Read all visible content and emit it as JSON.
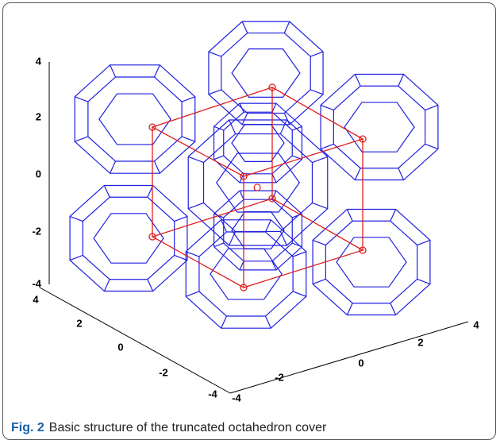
{
  "figure": {
    "z_ticks": [
      4,
      2,
      0,
      -2,
      -4
    ],
    "y_ticks": [
      4,
      2,
      0,
      -2,
      -4
    ],
    "x_ticks": [
      -4,
      -2,
      0,
      2,
      4
    ],
    "origin_label": "O"
  },
  "caption": {
    "label": "Fig. 2",
    "text": "Basic structure of the truncated octahedron cover"
  }
}
